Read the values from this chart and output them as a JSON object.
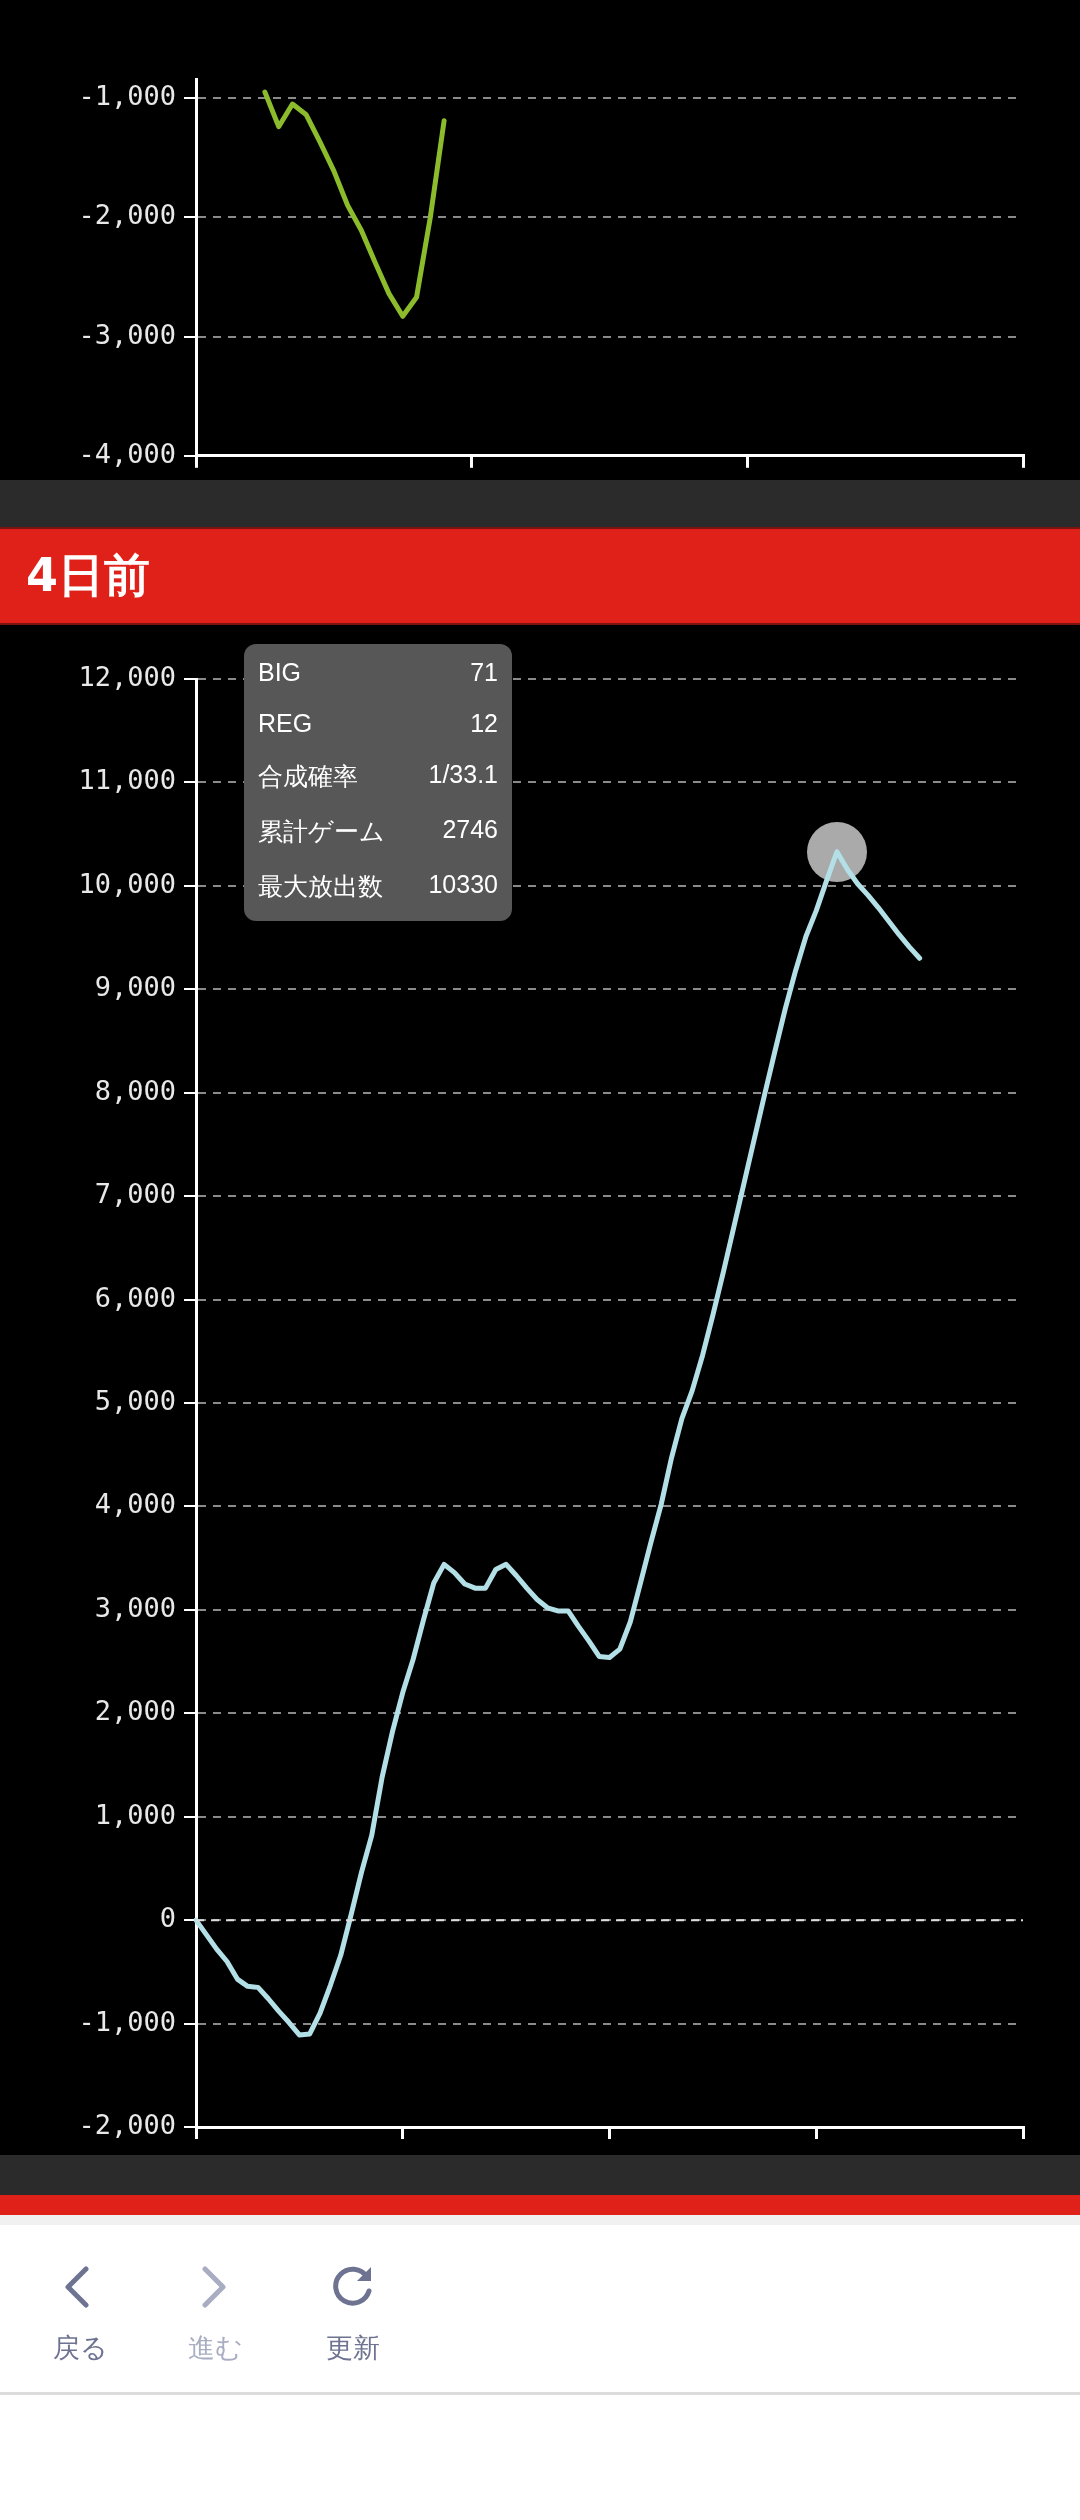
{
  "chart_data": [
    {
      "type": "line",
      "categories": [
        null,
        null,
        null,
        null,
        null,
        null,
        null,
        null,
        null,
        null,
        null,
        null,
        null,
        null,
        null,
        null,
        null,
        null,
        null,
        null,
        null,
        null,
        null,
        null,
        null,
        null,
        null,
        null,
        null,
        null,
        null,
        null,
        null,
        null,
        null,
        null,
        null,
        null,
        null,
        null,
        null,
        null,
        null,
        null,
        null,
        null,
        null,
        null,
        null,
        null,
        null,
        null,
        null,
        null,
        null,
        null,
        null,
        null,
        null,
        null,
        null
      ],
      "values": [
        null,
        null,
        null,
        null,
        null,
        -950,
        -1240,
        -1050,
        -1140,
        -1370,
        -1610,
        -1900,
        -2110,
        -2380,
        -2640,
        -2830,
        -2670,
        -2000,
        -1190,
        null,
        null,
        null,
        null,
        null,
        null,
        null,
        null,
        null,
        null,
        null,
        null,
        null,
        null,
        null,
        null,
        null,
        null,
        null,
        null,
        null,
        null,
        null,
        null,
        null,
        null,
        null,
        null,
        null,
        null,
        null,
        null,
        null,
        null,
        null,
        null,
        null,
        null,
        null,
        null,
        null,
        null
      ],
      "color": "#8cbb2b",
      "ylim": [
        -4000,
        -840
      ],
      "yticks": [
        {
          "value": -1000,
          "label": "-1,000"
        },
        {
          "value": -2000,
          "label": "-2,000"
        },
        {
          "value": -3000,
          "label": "-3,000"
        },
        {
          "value": -4000,
          "label": "-4,000"
        }
      ],
      "grid": "y",
      "legend": false
    },
    {
      "type": "line",
      "title": "4日前",
      "categories": [
        null,
        null,
        null,
        null,
        null,
        null,
        null,
        null,
        null,
        null,
        null,
        null,
        null,
        null,
        null,
        null,
        null,
        null,
        null,
        null,
        null,
        null,
        null,
        null,
        null,
        null,
        null,
        null,
        null,
        null,
        null,
        null,
        null,
        null,
        null,
        null,
        null,
        null,
        null,
        null,
        null,
        null,
        null,
        null,
        null,
        null,
        null,
        null,
        null,
        null,
        null,
        null,
        null,
        null,
        null,
        null,
        null,
        null,
        null,
        null,
        null,
        null,
        null,
        null,
        null,
        null,
        null,
        null,
        null,
        null,
        null,
        null,
        null,
        null,
        null,
        null,
        null,
        null,
        null,
        null,
        null
      ],
      "values": [
        0,
        -140,
        -280,
        -400,
        -570,
        -640,
        -650,
        -760,
        -880,
        -990,
        -1110,
        -1100,
        -900,
        -630,
        -340,
        50,
        460,
        820,
        1380,
        1820,
        2200,
        2520,
        2900,
        3260,
        3440,
        3360,
        3250,
        3210,
        3210,
        3390,
        3440,
        3330,
        3210,
        3100,
        3020,
        2990,
        2990,
        2840,
        2700,
        2550,
        2540,
        2620,
        2880,
        3260,
        3650,
        4020,
        4470,
        4850,
        5120,
        5460,
        5850,
        6260,
        6690,
        7120,
        7550,
        7980,
        8400,
        8810,
        9180,
        9510,
        9760,
        10050,
        10330,
        10160,
        10020,
        9910,
        9790,
        9660,
        9530,
        9410,
        9300,
        null,
        null,
        null,
        null,
        null,
        null,
        null,
        null,
        null,
        null
      ],
      "color": "#b3dfe6",
      "ref_lines": [
        {
          "axis": "y",
          "value": 0,
          "color": "#dddddd",
          "line_style": "dashed"
        }
      ],
      "ylim": [
        -2000,
        12000
      ],
      "yticks": [
        {
          "value": 12000,
          "label": "12,000"
        },
        {
          "value": 11000,
          "label": "11,000"
        },
        {
          "value": 10000,
          "label": "10,000"
        },
        {
          "value": 9000,
          "label": "9,000"
        },
        {
          "value": 8000,
          "label": "8,000"
        },
        {
          "value": 7000,
          "label": "7,000"
        },
        {
          "value": 6000,
          "label": "6,000"
        },
        {
          "value": 5000,
          "label": "5,000"
        },
        {
          "value": 4000,
          "label": "4,000"
        },
        {
          "value": 3000,
          "label": "3,000"
        },
        {
          "value": 2000,
          "label": "2,000"
        },
        {
          "value": 1000,
          "label": "1,000"
        },
        {
          "value": 0,
          "label": "0"
        },
        {
          "value": -1000,
          "label": "-1,000"
        },
        {
          "value": -2000,
          "label": "-2,000"
        }
      ],
      "grid": "y",
      "legend": false,
      "annotations": [
        "BIG",
        "71",
        "REG",
        "12",
        "合成確率",
        "1/33.1",
        "累計ゲーム",
        "2746",
        "最大放出数",
        "10330"
      ]
    },
    {
      "type": "other",
      "annotations": [
        "戻る",
        "進む",
        "更新"
      ]
    }
  ]
}
